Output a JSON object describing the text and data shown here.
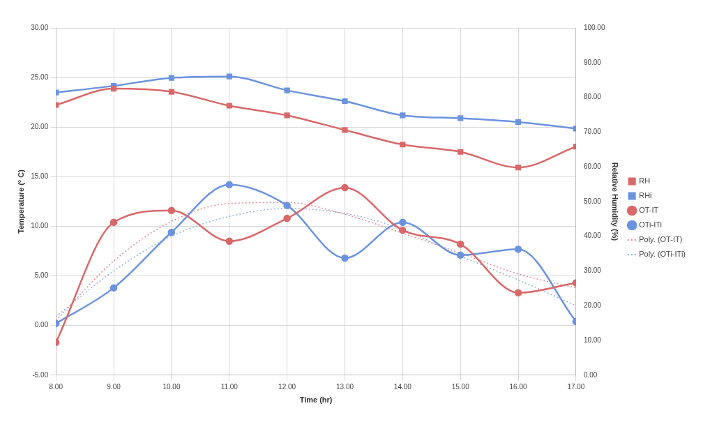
{
  "chart_data": {
    "type": "line",
    "xlabel": "Time (hr)",
    "ylabel": "Temperature (° C)",
    "y2label": "Relative Humidity (%)",
    "x": [
      8,
      9,
      10,
      11,
      12,
      13,
      14,
      15,
      16,
      17
    ],
    "xlim": [
      8,
      17
    ],
    "xticks": [
      {
        "value": 8,
        "label": "8.00"
      },
      {
        "value": 9,
        "label": "9.00"
      },
      {
        "value": 10,
        "label": "10.00"
      },
      {
        "value": 11,
        "label": "11.00"
      },
      {
        "value": 12,
        "label": "12.00"
      },
      {
        "value": 13,
        "label": "13.00"
      },
      {
        "value": 14,
        "label": "14.00"
      },
      {
        "value": 15,
        "label": "15.00"
      },
      {
        "value": 16,
        "label": "16.00"
      },
      {
        "value": 17,
        "label": "17.00"
      }
    ],
    "ylim": [
      -5,
      30
    ],
    "yticks": [
      {
        "value": -5,
        "label": "-5.00"
      },
      {
        "value": 0,
        "label": "0.00"
      },
      {
        "value": 5,
        "label": "5.00"
      },
      {
        "value": 10,
        "label": "10.00"
      },
      {
        "value": 15,
        "label": "15.00"
      },
      {
        "value": 20,
        "label": "20.00"
      },
      {
        "value": 25,
        "label": "25.00"
      },
      {
        "value": 30,
        "label": "30.00"
      }
    ],
    "y2lim": [
      0,
      100
    ],
    "y2ticks": [
      {
        "value": 0,
        "label": "0.00"
      },
      {
        "value": 10,
        "label": "10.00"
      },
      {
        "value": 20,
        "label": "20.00"
      },
      {
        "value": 30,
        "label": "30.00"
      },
      {
        "value": 40,
        "label": "40.00"
      },
      {
        "value": 50,
        "label": "50.00"
      },
      {
        "value": 60,
        "label": "60.00"
      },
      {
        "value": 70,
        "label": "70.00"
      },
      {
        "value": 80,
        "label": "80.00"
      },
      {
        "value": 90,
        "label": "90.00"
      },
      {
        "value": 100,
        "label": "100.00"
      }
    ],
    "grid": true,
    "legend": "right",
    "series": [
      {
        "name": "RH",
        "color": "#d9686a",
        "axis": "y2",
        "marker": "square",
        "values": [
          77.8,
          82.5,
          81.6,
          77.6,
          74.8,
          70.6,
          66.4,
          64.3,
          59.8,
          65.8
        ]
      },
      {
        "name": "RHi",
        "color": "#6b93e0",
        "axis": "y2",
        "marker": "square",
        "values": [
          81.4,
          83.3,
          85.6,
          86.0,
          82.0,
          78.9,
          74.8,
          74.0,
          72.9,
          71.0
        ]
      },
      {
        "name": "OT-IT",
        "color": "#d9686a",
        "marker": "circle",
        "values": [
          -1.7,
          10.4,
          11.6,
          8.5,
          10.8,
          13.9,
          9.6,
          8.2,
          3.3,
          4.3
        ]
      },
      {
        "name": "OTi-ITi",
        "color": "#6b93e0",
        "marker": "circle",
        "values": [
          0.2,
          3.8,
          9.4,
          14.2,
          12.1,
          6.8,
          10.4,
          7.1,
          7.7,
          0.4
        ]
      },
      {
        "name": "Poly. (OT-IT)",
        "color": "#e08a9a",
        "marker": "none",
        "line_style": "dotted",
        "values": [
          0.5,
          6.5,
          10.5,
          12.3,
          12.4,
          11.2,
          9.3,
          7.3,
          5.2,
          3.8
        ]
      },
      {
        "name": "Poly. (OTi-ITi)",
        "color": "#8fb0e0",
        "marker": "none",
        "line_style": "dotted",
        "values": [
          0.9,
          5.5,
          9.0,
          11.0,
          11.8,
          11.3,
          9.7,
          7.0,
          4.6,
          2.0
        ]
      }
    ]
  }
}
